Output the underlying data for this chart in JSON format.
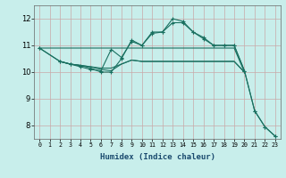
{
  "xlabel": "Humidex (Indice chaleur)",
  "bg_color": "#c8eeeb",
  "grid_color": "#c8a8a8",
  "line_color": "#1a7060",
  "xlim": [
    -0.5,
    23.5
  ],
  "ylim": [
    7.5,
    12.5
  ],
  "yticks": [
    8,
    9,
    10,
    11,
    12
  ],
  "xticks": [
    0,
    1,
    2,
    3,
    4,
    5,
    6,
    7,
    8,
    9,
    10,
    11,
    12,
    13,
    14,
    15,
    16,
    17,
    18,
    19,
    20,
    21,
    22,
    23
  ],
  "line1_x": [
    0,
    1,
    2,
    3,
    4,
    5,
    6,
    7,
    8,
    9,
    10,
    11,
    12,
    13,
    14,
    15,
    16,
    17,
    18,
    19,
    20
  ],
  "line1_y": [
    10.9,
    10.9,
    10.9,
    10.9,
    10.9,
    10.9,
    10.9,
    10.9,
    10.9,
    10.9,
    10.9,
    10.9,
    10.9,
    10.9,
    10.9,
    10.9,
    10.9,
    10.9,
    10.9,
    10.9,
    10.0
  ],
  "line2_x": [
    2,
    3,
    4,
    5,
    6,
    7,
    8,
    9,
    10,
    11,
    12,
    13,
    14,
    15,
    16,
    17,
    18,
    19,
    20
  ],
  "line2_y": [
    10.4,
    10.3,
    10.25,
    10.2,
    10.15,
    10.15,
    10.3,
    10.45,
    10.4,
    10.4,
    10.4,
    10.4,
    10.4,
    10.4,
    10.4,
    10.4,
    10.4,
    10.4,
    10.0
  ],
  "line3_x": [
    2,
    3,
    4,
    5,
    6,
    7,
    8,
    9,
    10,
    11,
    12,
    13,
    14,
    15,
    16,
    17,
    18,
    19,
    20
  ],
  "line3_y": [
    10.4,
    10.3,
    10.25,
    10.2,
    10.1,
    10.05,
    10.3,
    10.45,
    10.4,
    10.4,
    10.4,
    10.4,
    10.4,
    10.4,
    10.4,
    10.4,
    10.4,
    10.4,
    10.0
  ],
  "line4_x": [
    0,
    2,
    3,
    4,
    5,
    6,
    7,
    8,
    9,
    10,
    11,
    12,
    13,
    14,
    15,
    16,
    17,
    18,
    19,
    20,
    21,
    22,
    23
  ],
  "line4_y": [
    10.9,
    10.4,
    10.3,
    10.2,
    10.1,
    10.05,
    10.85,
    10.55,
    11.15,
    11.0,
    11.45,
    11.5,
    11.85,
    11.85,
    11.5,
    11.25,
    11.0,
    11.0,
    11.0,
    10.05,
    8.55,
    7.95,
    7.6
  ],
  "line5_x": [
    0,
    2,
    3,
    4,
    5,
    6,
    7,
    8,
    9,
    10,
    11,
    12,
    13,
    14,
    15,
    16,
    17,
    18,
    19,
    20,
    21,
    22,
    23
  ],
  "line5_y": [
    10.9,
    10.4,
    10.3,
    10.25,
    10.15,
    10.0,
    10.0,
    10.5,
    11.2,
    11.0,
    11.5,
    11.5,
    12.0,
    11.9,
    11.5,
    11.3,
    11.0,
    11.0,
    11.0,
    10.05,
    8.55,
    7.95,
    7.6
  ]
}
